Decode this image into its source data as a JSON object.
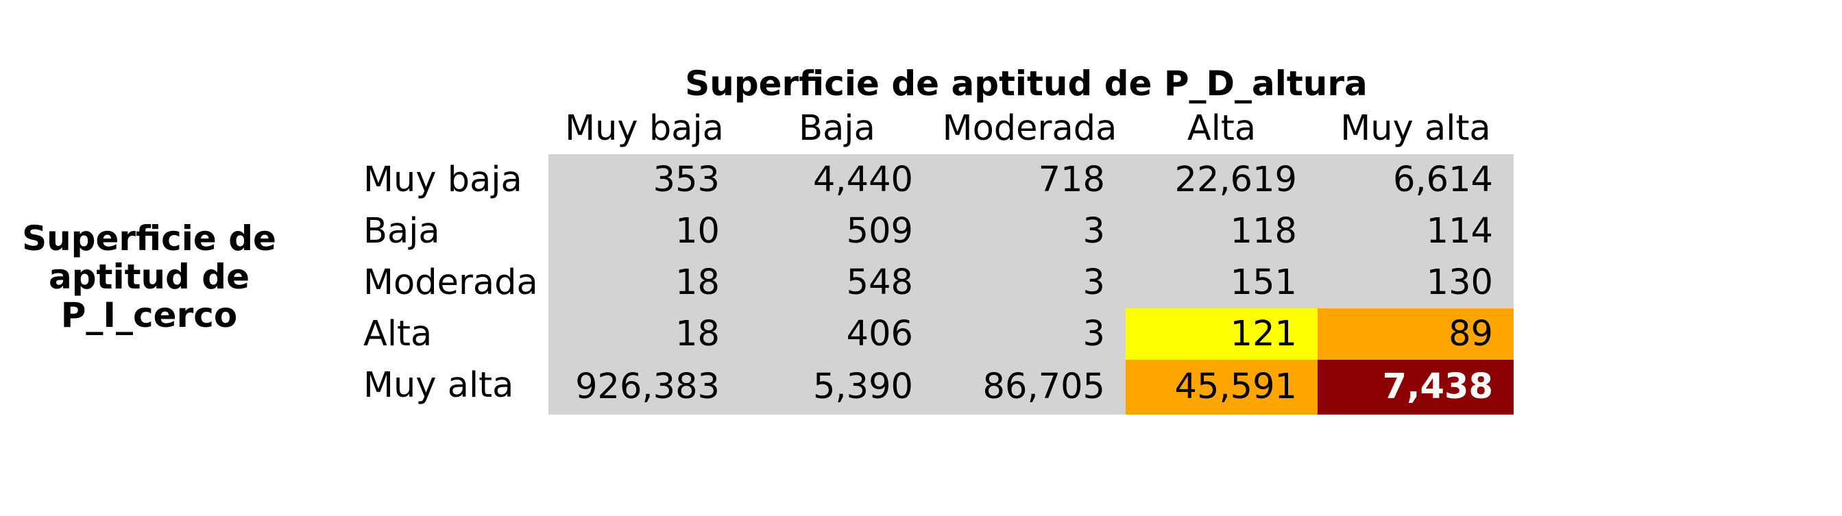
{
  "chart_data": {
    "type": "table",
    "title": "Superficie de aptitud de P_D_altura",
    "row_title_lines": [
      "Superficie de",
      "aptitud de",
      "P_I_cerco"
    ],
    "columns": [
      "Muy baja",
      "Baja",
      "Moderada",
      "Alta",
      "Muy alta"
    ],
    "rows": [
      "Muy baja",
      "Baja",
      "Moderada",
      "Alta",
      "Muy alta"
    ],
    "values": [
      [
        "353",
        "4,440",
        "718",
        "22,619",
        "6,614"
      ],
      [
        "10",
        "509",
        "3",
        "118",
        "114"
      ],
      [
        "18",
        "548",
        "3",
        "151",
        "130"
      ],
      [
        "18",
        "406",
        "3",
        "121",
        "89"
      ],
      [
        "926,383",
        "5,390",
        "86,705",
        "45,591",
        "7,438"
      ]
    ],
    "cell_colors": [
      [
        "#d3d3d3",
        "#d3d3d3",
        "#d3d3d3",
        "#d3d3d3",
        "#d3d3d3"
      ],
      [
        "#d3d3d3",
        "#d3d3d3",
        "#d3d3d3",
        "#d3d3d3",
        "#d3d3d3"
      ],
      [
        "#d3d3d3",
        "#d3d3d3",
        "#d3d3d3",
        "#d3d3d3",
        "#d3d3d3"
      ],
      [
        "#d3d3d3",
        "#d3d3d3",
        "#d3d3d3",
        "#ffff00",
        "#ffa500"
      ],
      [
        "#d3d3d3",
        "#d3d3d3",
        "#d3d3d3",
        "#ffa500",
        "#8b0000"
      ]
    ],
    "highlight_text": {
      "row": 4,
      "col": 4,
      "color": "#ffffff",
      "weight": "bold"
    }
  }
}
